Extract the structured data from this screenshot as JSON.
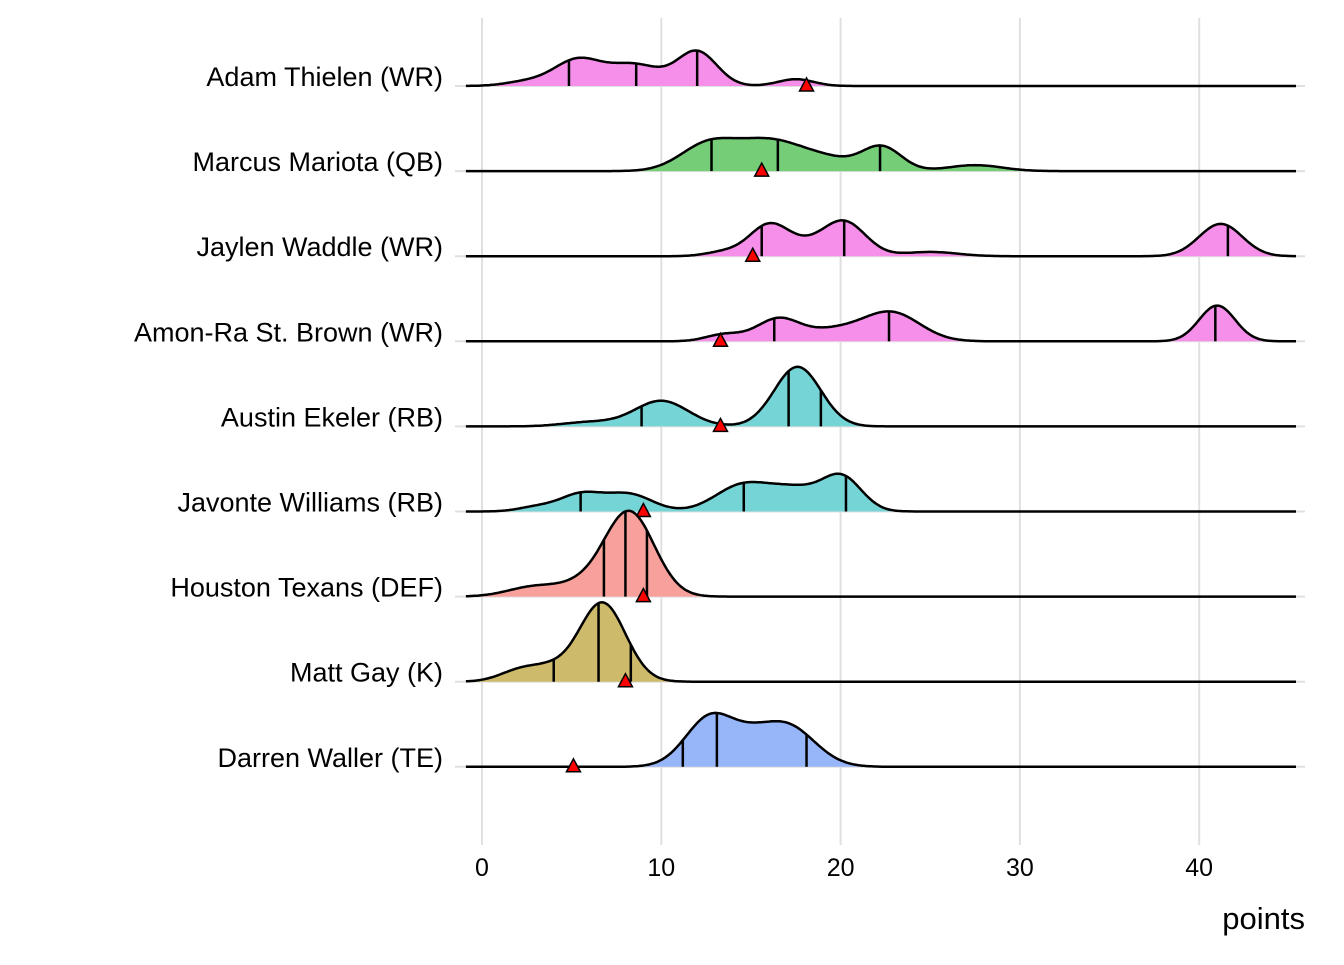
{
  "chart_data": {
    "type": "ridgeline",
    "title": "",
    "xlabel": "points",
    "ylabel": "",
    "xlim": [
      -0.9,
      45.5
    ],
    "x_ticks": [
      0,
      10,
      20,
      30,
      40
    ],
    "x_tick_labels": [
      "0",
      "10",
      "20",
      "30",
      "40"
    ],
    "grid": true,
    "density_scale_note": "component heights in row-spacing units",
    "series": [
      {
        "name": "Adam Thielen (WR)",
        "color": "#F58FE9",
        "quantiles": [
          4.85,
          8.6,
          12.0
        ],
        "actual": 18.1,
        "components": [
          [
            5.3,
            1.3,
            0.3
          ],
          [
            8.5,
            1.5,
            0.25
          ],
          [
            12,
            1.1,
            0.4
          ],
          [
            17.5,
            1.0,
            0.08
          ],
          [
            2.5,
            1.2,
            0.05
          ]
        ]
      },
      {
        "name": "Marcus Mariota (QB)",
        "color": "#75CD77",
        "quantiles": [
          12.8,
          16.5,
          22.2
        ],
        "actual": 15.6,
        "components": [
          [
            12.5,
            1.5,
            0.28
          ],
          [
            16,
            2,
            0.36
          ],
          [
            22.3,
            1.1,
            0.28
          ],
          [
            19.5,
            1.5,
            0.1
          ],
          [
            27.5,
            1.5,
            0.07
          ]
        ]
      },
      {
        "name": "Jaylen Waddle (WR)",
        "color": "#F58FE9",
        "quantiles": [
          15.6,
          20.2,
          41.6
        ],
        "actual": 15.1,
        "components": [
          [
            16,
            1.1,
            0.36
          ],
          [
            20.2,
            1.2,
            0.4
          ],
          [
            25,
            1.5,
            0.05
          ],
          [
            41.2,
            1.2,
            0.38
          ],
          [
            18,
            1.2,
            0.1
          ],
          [
            13.5,
            1,
            0.05
          ]
        ]
      },
      {
        "name": "Amon-Ra St. Brown (WR)",
        "color": "#F58FE9",
        "quantiles": [
          16.3,
          22.7,
          40.9
        ],
        "actual": 13.3,
        "components": [
          [
            13.5,
            1,
            0.08
          ],
          [
            16.5,
            1.2,
            0.26
          ],
          [
            22.8,
            1.6,
            0.34
          ],
          [
            19.5,
            1.5,
            0.12
          ],
          [
            41,
            1,
            0.42
          ]
        ]
      },
      {
        "name": "Austin Ekeler (RB)",
        "color": "#75D4D6",
        "quantiles": [
          8.9,
          17.1,
          18.9
        ],
        "actual": 13.3,
        "components": [
          [
            10,
            1.5,
            0.3
          ],
          [
            17.6,
            1.3,
            0.7
          ],
          [
            6,
            1.5,
            0.05
          ]
        ]
      },
      {
        "name": "Javonte Williams (RB)",
        "color": "#75D4D6",
        "quantiles": [
          5.5,
          14.6,
          20.3
        ],
        "actual": 9.0,
        "components": [
          [
            5.5,
            1.2,
            0.2
          ],
          [
            8.2,
            1.3,
            0.2
          ],
          [
            14.5,
            1.5,
            0.3
          ],
          [
            17.5,
            1.5,
            0.25
          ],
          [
            20.1,
            1.1,
            0.38
          ],
          [
            3,
            1,
            0.05
          ]
        ]
      },
      {
        "name": "Houston Texans (DEF)",
        "color": "#F8A09C",
        "quantiles": [
          6.8,
          8.0,
          9.2
        ],
        "actual": 9.0,
        "components": [
          [
            8.2,
            1.4,
            1.0
          ],
          [
            3,
            1.5,
            0.12
          ],
          [
            5.5,
            1.2,
            0.1
          ]
        ]
      },
      {
        "name": "Matt Gay (K)",
        "color": "#CDBA6A",
        "quantiles": [
          4.0,
          6.5,
          8.3
        ],
        "actual": 8.0,
        "components": [
          [
            6.7,
            1.3,
            0.93
          ],
          [
            2.3,
            1.2,
            0.15
          ],
          [
            4,
            1,
            0.1
          ]
        ]
      },
      {
        "name": "Darren Waller (TE)",
        "color": "#97B5F9",
        "quantiles": [
          11.2,
          13.1,
          18.1
        ],
        "actual": 5.1,
        "components": [
          [
            12.8,
            1.4,
            0.6
          ],
          [
            16.9,
            1.6,
            0.5
          ],
          [
            15,
            1,
            0.1
          ]
        ]
      }
    ]
  }
}
